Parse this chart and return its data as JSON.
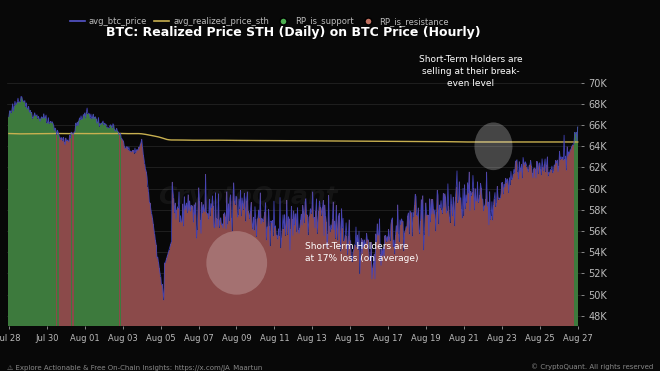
{
  "title": "BTC: Realized Price STH (Daily) on BTC Price (Hourly)",
  "background_color": "#080808",
  "text_color": "#bbbbbb",
  "legend_items": [
    {
      "label": "avg_btc_price",
      "color": "#5555cc",
      "style": "line"
    },
    {
      "label": "avg_realized_price_sth",
      "color": "#c8b050",
      "style": "line"
    },
    {
      "label": "RP_is_support",
      "color": "#4caf50",
      "style": "circle"
    },
    {
      "label": "RP_is_resistance",
      "color": "#c07060",
      "style": "circle"
    }
  ],
  "y_ticks": [
    48000,
    50000,
    52000,
    54000,
    56000,
    58000,
    60000,
    62000,
    64000,
    66000,
    68000,
    70000
  ],
  "y_labels": [
    "48K",
    "50K",
    "52K",
    "54K",
    "56K",
    "58K",
    "60K",
    "62K",
    "64K",
    "66K",
    "68K",
    "70K"
  ],
  "x_labels": [
    "Jul 28",
    "Jul 30",
    "Aug 01",
    "Aug 03",
    "Aug 05",
    "Aug 07",
    "Aug 09",
    "Aug 11",
    "Aug 13",
    "Aug 15",
    "Aug 17",
    "Aug 19",
    "Aug 21",
    "Aug 23",
    "Aug 25",
    "Aug 27"
  ],
  "ylim": [
    47000,
    71500
  ],
  "annotation1": "Short-Term Holders are\nat 17% loss (on average)",
  "annotation2": "Short-Term Holders are\nselling at their break-\neven level",
  "footer_left": "⚠ Explore Actionable & Free On-Chain Insights: https://x.com/JA_Maartun",
  "footer_right": "© CryptoQuant. All rights reserved",
  "watermark": "CryptoQuant",
  "btc_line_color": "#4444bb",
  "sth_line_color": "#c8b050",
  "support_bar_color": "#3d7a3d",
  "resistance_bar_color": "#8b4a4a",
  "bar_alpha": 1.0
}
